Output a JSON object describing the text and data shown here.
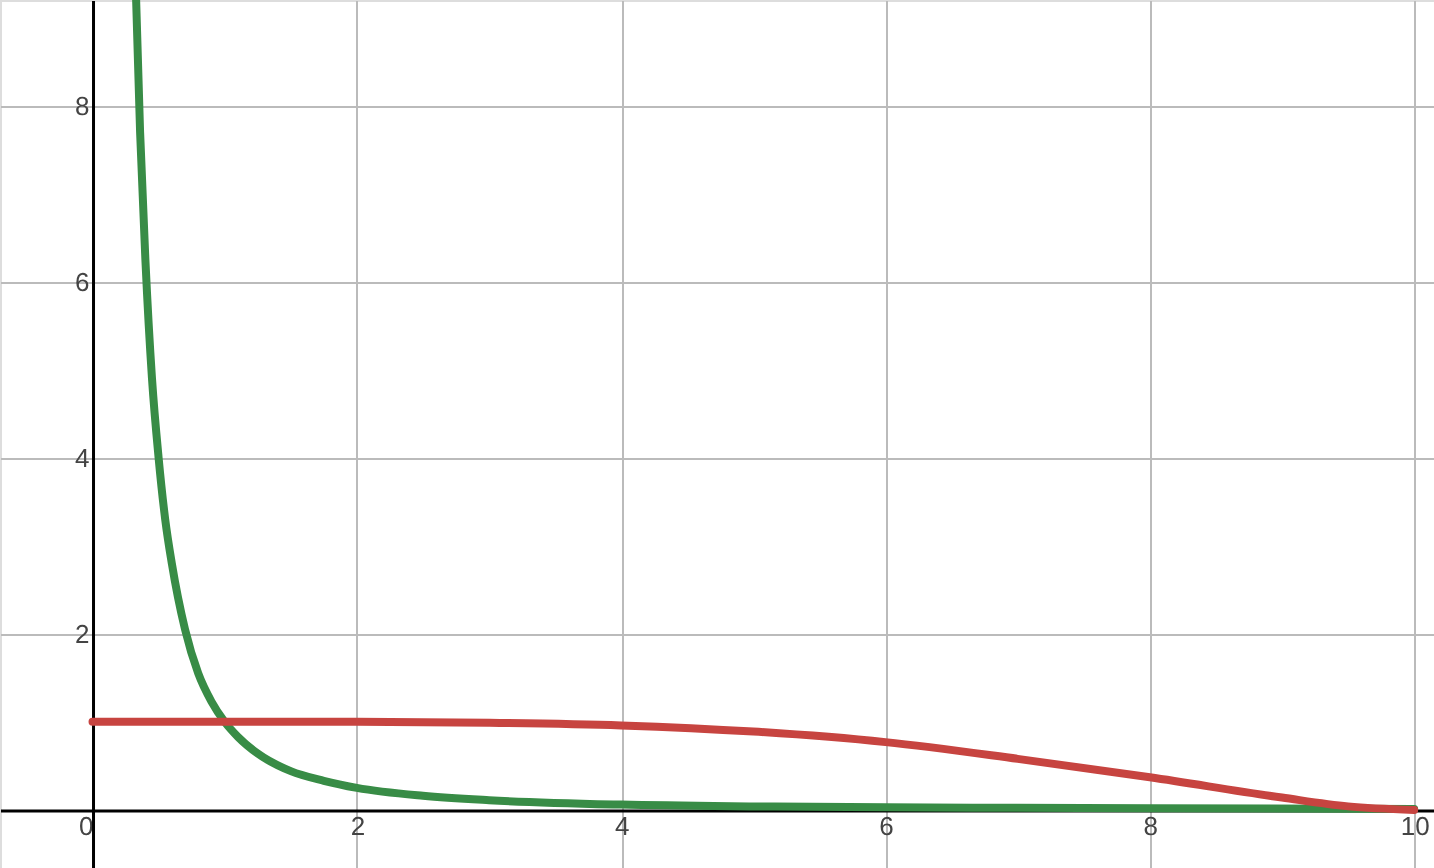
{
  "chart_data": {
    "type": "line",
    "xlim": [
      -0.7,
      10.15
    ],
    "ylim": [
      -0.66,
      9.2
    ],
    "xticks": [
      0,
      2,
      4,
      6,
      8,
      10
    ],
    "yticks": [
      2,
      4,
      6,
      8
    ],
    "grid": true,
    "line_style": "solid",
    "marker": "none",
    "series": [
      {
        "color": "#388c46",
        "x": [
          0.33,
          0.36,
          0.4,
          0.45,
          0.5,
          0.55,
          0.6,
          0.7,
          0.8,
          0.9,
          1,
          1.1,
          1.25,
          1.5,
          1.75,
          2,
          2.5,
          3,
          4,
          5,
          6,
          8,
          10
        ],
        "values": [
          9.2,
          7.7,
          6.25,
          4.9,
          4,
          3.3,
          2.8,
          2.05,
          1.55,
          1.23,
          1,
          0.83,
          0.64,
          0.44,
          0.33,
          0.25,
          0.16,
          0.11,
          0.06,
          0.04,
          0.03,
          0.02,
          0.01
        ]
      },
      {
        "color": "#c74440",
        "x": [
          0,
          1,
          2,
          3,
          4,
          5,
          6,
          7,
          8,
          9,
          9.5,
          10
        ],
        "values": [
          1,
          1,
          1,
          0.99,
          0.96,
          0.89,
          0.77,
          0.58,
          0.37,
          0.14,
          0.04,
          0
        ]
      }
    ]
  }
}
